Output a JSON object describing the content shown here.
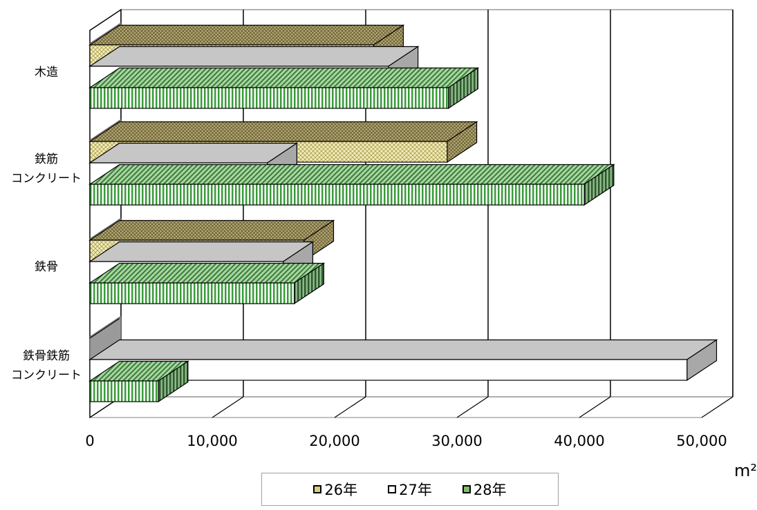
{
  "chart_data": {
    "type": "bar",
    "orientation": "horizontal",
    "style": "3d",
    "categories": [
      "木造",
      "鉄筋\nコンクリート",
      "鉄骨",
      "鉄骨鉄筋\nコンクリート"
    ],
    "series": [
      {
        "name": "26年",
        "values": [
          23200,
          29200,
          17500,
          0
        ],
        "color": "#f0e8b0"
      },
      {
        "name": "27年",
        "values": [
          24400,
          14500,
          15800,
          48800
        ],
        "color": "#ffffff"
      },
      {
        "name": "28年",
        "values": [
          29300,
          40400,
          16700,
          5600
        ],
        "color": "#9ecb8a"
      }
    ],
    "xlim": [
      0,
      50000
    ],
    "xticks": [
      "0",
      "10,000",
      "20,000",
      "30,000",
      "40,000",
      "50,000"
    ],
    "xticks_values": [
      0,
      10000,
      20000,
      30000,
      40000,
      50000
    ],
    "unit_label": "m²",
    "gridlines": true,
    "legend_position": "bottom"
  }
}
